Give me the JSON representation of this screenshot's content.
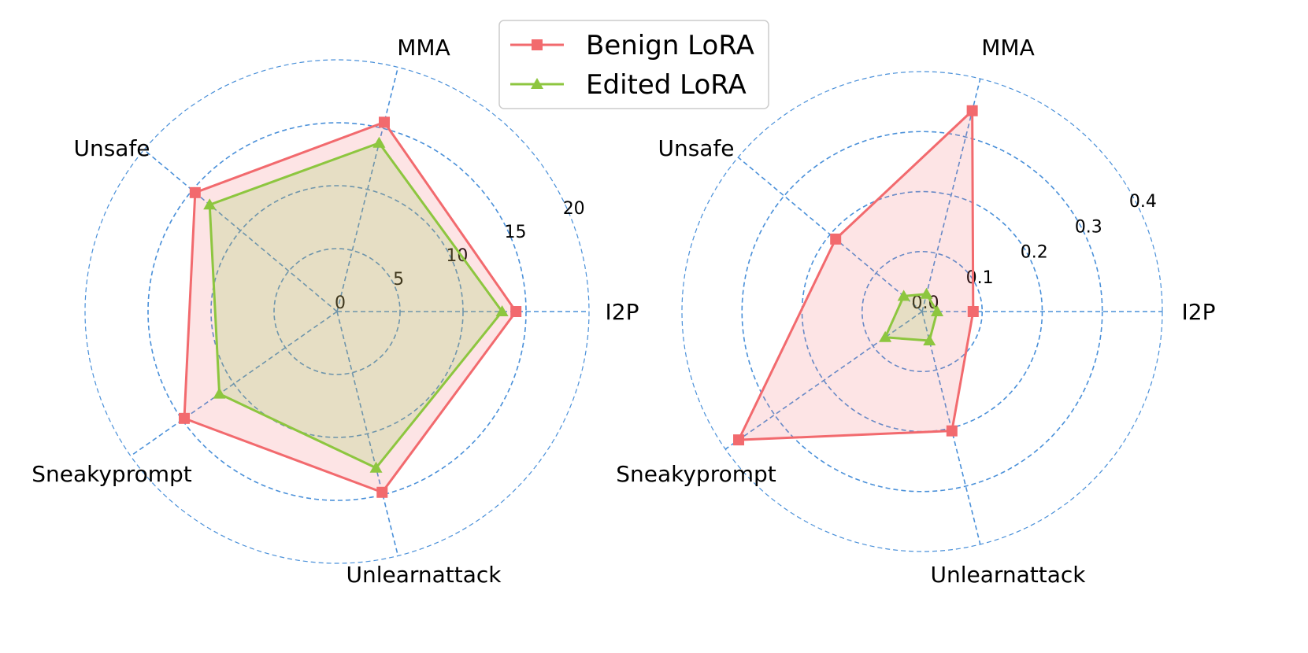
{
  "legend": {
    "entries": [
      {
        "label": "Benign LoRA",
        "color": "#f26a6e",
        "marker": "square"
      },
      {
        "label": "Edited LoRA",
        "color": "#8dc63f",
        "marker": "triangle"
      }
    ]
  },
  "chart_data": [
    {
      "type": "radar",
      "categories": [
        "I2P",
        "MMA",
        "Unsafe",
        "Sneakyprompt",
        "Unlearnattack"
      ],
      "rmax": 20,
      "rticks": [
        0,
        5,
        10,
        15,
        20
      ],
      "rtick_labels": [
        "0",
        "5",
        "10",
        "15",
        "20"
      ],
      "series": [
        {
          "name": "Benign LoRA",
          "color": "#f26a6e",
          "values": [
            14.2,
            15.5,
            14.7,
            14.8,
            14.8
          ]
        },
        {
          "name": "Edited LoRA",
          "color": "#8dc63f",
          "values": [
            13.1,
            13.8,
            13.2,
            11.4,
            12.8
          ]
        }
      ],
      "grid": true
    },
    {
      "type": "radar",
      "categories": [
        "I2P",
        "MMA",
        "Unsafe",
        "Sneakyprompt",
        "Unlearnattack"
      ],
      "rmax": 0.4,
      "rticks": [
        0.0,
        0.1,
        0.2,
        0.3,
        0.4
      ],
      "rtick_labels": [
        "0.0",
        "0.1",
        "0.2",
        "0.3",
        "0.4"
      ],
      "series": [
        {
          "name": "Benign LoRA",
          "color": "#f26a6e",
          "values": [
            0.085,
            0.345,
            0.188,
            0.373,
            0.205
          ]
        },
        {
          "name": "Edited LoRA",
          "color": "#8dc63f",
          "values": [
            0.025,
            0.03,
            0.04,
            0.075,
            0.05
          ]
        }
      ],
      "grid": true
    }
  ]
}
